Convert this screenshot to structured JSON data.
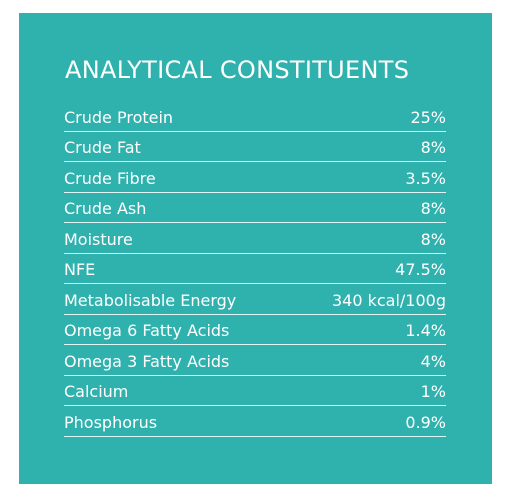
{
  "title": "ANALYTICAL CONSTITUENTS",
  "colors": {
    "panel_background": "#2fb2ae",
    "text": "#ffffff"
  },
  "rows": [
    {
      "label": "Crude Protein",
      "value": "25%"
    },
    {
      "label": "Crude Fat",
      "value": "8%"
    },
    {
      "label": "Crude Fibre",
      "value": "3.5%"
    },
    {
      "label": "Crude Ash",
      "value": "8%"
    },
    {
      "label": "Moisture",
      "value": "8%"
    },
    {
      "label": "NFE",
      "value": "47.5%"
    },
    {
      "label": "Metabolisable Energy",
      "value": "340 kcal/100g"
    },
    {
      "label": "Omega 6 Fatty Acids",
      "value": "1.4%"
    },
    {
      "label": "Omega 3 Fatty Acids",
      "value": "4%"
    },
    {
      "label": "Calcium",
      "value": "1%"
    },
    {
      "label": "Phosphorus",
      "value": "0.9%"
    }
  ]
}
